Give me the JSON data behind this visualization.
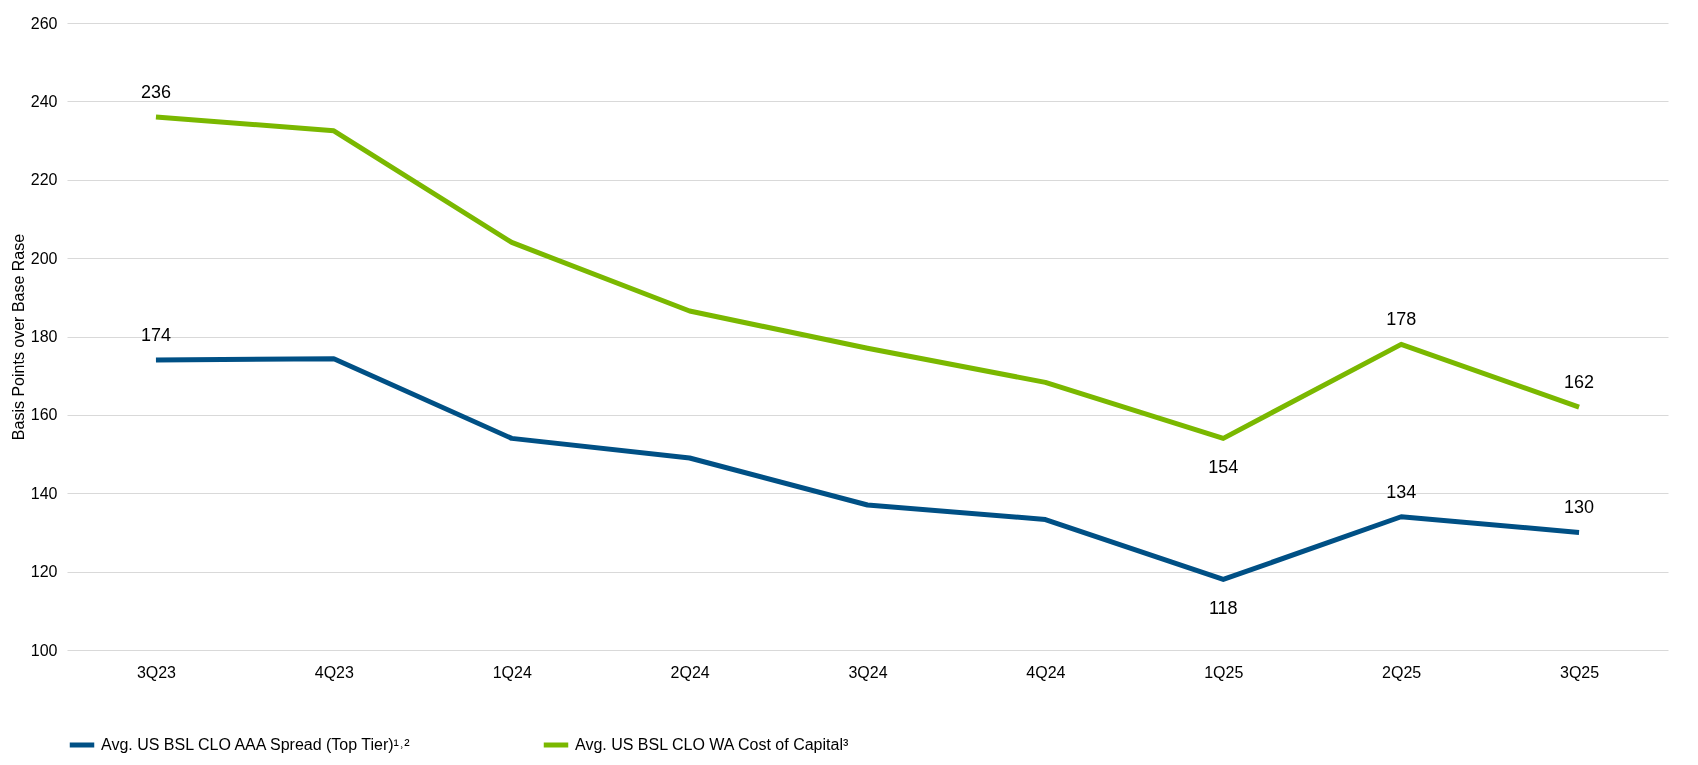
{
  "chart_data": {
    "type": "line",
    "ylabel": "Basis Points over Base Rase",
    "categories": [
      "3Q23",
      "4Q23",
      "1Q24",
      "2Q24",
      "3Q24",
      "4Q24",
      "1Q25",
      "2Q25",
      "3Q25"
    ],
    "series": [
      {
        "name": "Avg. US BSL CLO AAA Spread (Top Tier)¹˒²",
        "color": "#005085",
        "values": [
          174,
          174.3,
          154,
          149,
          137,
          133.3,
          118,
          134,
          130
        ],
        "value_labels": [
          "174",
          null,
          null,
          null,
          null,
          null,
          "118",
          "134",
          "130"
        ]
      },
      {
        "name": "Avg. US BSL CLO WA Cost of Capital³",
        "color": "#7ab800",
        "values": [
          236,
          232.5,
          204,
          186.5,
          177,
          168.3,
          154,
          178,
          162
        ],
        "value_labels": [
          "236",
          null,
          null,
          null,
          null,
          null,
          "154",
          "178",
          "162"
        ]
      }
    ],
    "ylim": [
      100,
      260
    ],
    "yticks": [
      100,
      120,
      140,
      160,
      180,
      200,
      220,
      240,
      260
    ],
    "grid": "y",
    "legend": "bottom",
    "marker": "none",
    "line_style": "solid"
  }
}
